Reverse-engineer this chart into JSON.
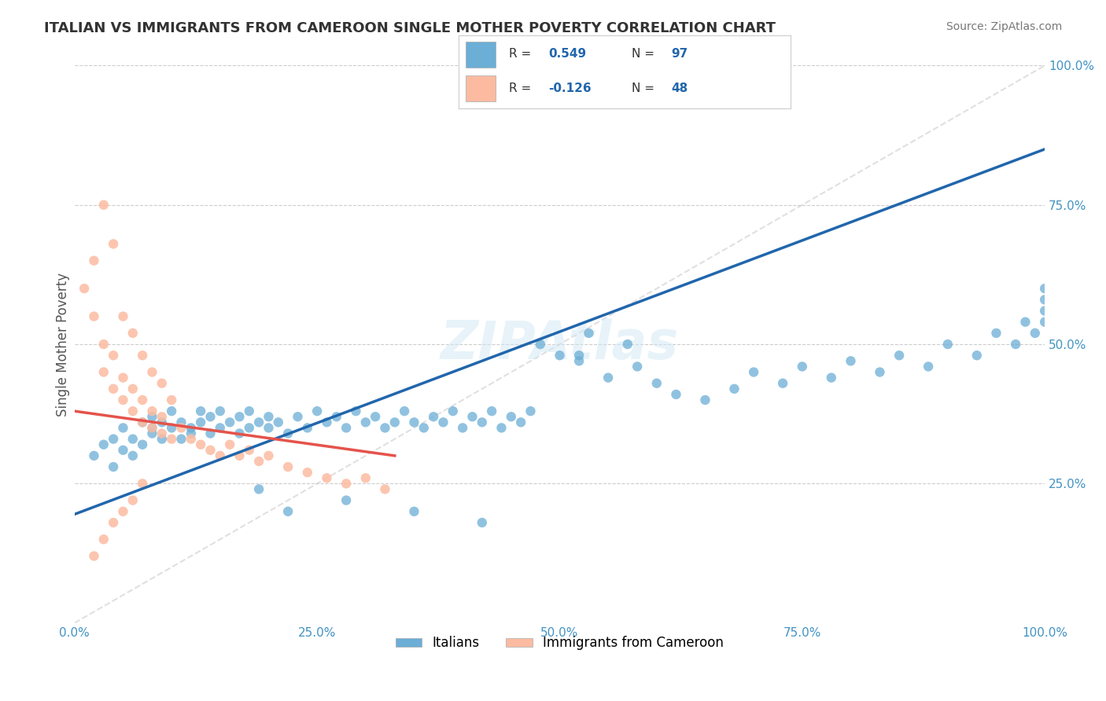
{
  "title": "ITALIAN VS IMMIGRANTS FROM CAMEROON SINGLE MOTHER POVERTY CORRELATION CHART",
  "source": "Source: ZipAtlas.com",
  "xlabel": "",
  "ylabel": "Single Mother Poverty",
  "xlim": [
    0,
    1
  ],
  "ylim": [
    0,
    1
  ],
  "xtick_labels": [
    "0.0%",
    "25.0%",
    "50.0%",
    "75.0%",
    "100.0%"
  ],
  "xtick_vals": [
    0,
    0.25,
    0.5,
    0.75,
    1.0
  ],
  "ytick_labels": [
    "25.0%",
    "50.0%",
    "75.0%",
    "100.0%"
  ],
  "ytick_vals": [
    0.25,
    0.5,
    0.75,
    1.0
  ],
  "blue_R": 0.549,
  "blue_N": 97,
  "pink_R": -0.126,
  "pink_N": 48,
  "blue_color": "#6baed6",
  "pink_color": "#fcbba1",
  "blue_trend_color": "#2166ac",
  "pink_trend_color": "#e5534b",
  "axis_color": "#4393c3",
  "watermark": "ZIPAtlas",
  "legend_label_blue": "Italians",
  "legend_label_pink": "Immigrants from Cameroon",
  "blue_scatter_x": [
    0.02,
    0.03,
    0.04,
    0.04,
    0.05,
    0.05,
    0.06,
    0.06,
    0.07,
    0.07,
    0.08,
    0.08,
    0.08,
    0.09,
    0.09,
    0.1,
    0.1,
    0.11,
    0.11,
    0.12,
    0.12,
    0.13,
    0.13,
    0.14,
    0.14,
    0.15,
    0.15,
    0.16,
    0.17,
    0.17,
    0.18,
    0.18,
    0.19,
    0.2,
    0.2,
    0.21,
    0.22,
    0.23,
    0.24,
    0.25,
    0.26,
    0.27,
    0.28,
    0.29,
    0.3,
    0.31,
    0.32,
    0.33,
    0.34,
    0.35,
    0.36,
    0.37,
    0.38,
    0.39,
    0.4,
    0.41,
    0.42,
    0.43,
    0.44,
    0.45,
    0.46,
    0.47,
    0.48,
    0.5,
    0.52,
    0.53,
    0.55,
    0.58,
    0.6,
    0.62,
    0.65,
    0.68,
    0.7,
    0.73,
    0.75,
    0.78,
    0.8,
    0.83,
    0.85,
    0.88,
    0.9,
    0.93,
    0.95,
    0.97,
    0.98,
    0.99,
    1.0,
    1.0,
    1.0,
    1.0,
    0.52,
    0.57,
    0.35,
    0.42,
    0.28,
    0.22,
    0.19
  ],
  "blue_scatter_y": [
    0.3,
    0.32,
    0.28,
    0.33,
    0.35,
    0.31,
    0.3,
    0.33,
    0.32,
    0.36,
    0.34,
    0.35,
    0.37,
    0.33,
    0.36,
    0.35,
    0.38,
    0.33,
    0.36,
    0.34,
    0.35,
    0.36,
    0.38,
    0.34,
    0.37,
    0.35,
    0.38,
    0.36,
    0.34,
    0.37,
    0.35,
    0.38,
    0.36,
    0.35,
    0.37,
    0.36,
    0.34,
    0.37,
    0.35,
    0.38,
    0.36,
    0.37,
    0.35,
    0.38,
    0.36,
    0.37,
    0.35,
    0.36,
    0.38,
    0.36,
    0.35,
    0.37,
    0.36,
    0.38,
    0.35,
    0.37,
    0.36,
    0.38,
    0.35,
    0.37,
    0.36,
    0.38,
    0.5,
    0.48,
    0.47,
    0.52,
    0.44,
    0.46,
    0.43,
    0.41,
    0.4,
    0.42,
    0.45,
    0.43,
    0.46,
    0.44,
    0.47,
    0.45,
    0.48,
    0.46,
    0.5,
    0.48,
    0.52,
    0.5,
    0.54,
    0.52,
    0.56,
    0.54,
    0.58,
    0.6,
    0.48,
    0.5,
    0.2,
    0.18,
    0.22,
    0.2,
    0.24
  ],
  "pink_scatter_x": [
    0.01,
    0.02,
    0.02,
    0.03,
    0.03,
    0.04,
    0.04,
    0.05,
    0.05,
    0.06,
    0.06,
    0.07,
    0.07,
    0.08,
    0.08,
    0.09,
    0.09,
    0.1,
    0.11,
    0.12,
    0.13,
    0.14,
    0.15,
    0.16,
    0.17,
    0.18,
    0.19,
    0.2,
    0.22,
    0.24,
    0.26,
    0.28,
    0.3,
    0.32,
    0.03,
    0.04,
    0.05,
    0.06,
    0.07,
    0.08,
    0.09,
    0.1,
    0.02,
    0.03,
    0.04,
    0.05,
    0.06,
    0.07
  ],
  "pink_scatter_y": [
    0.6,
    0.65,
    0.55,
    0.5,
    0.45,
    0.42,
    0.48,
    0.4,
    0.44,
    0.38,
    0.42,
    0.36,
    0.4,
    0.35,
    0.38,
    0.34,
    0.37,
    0.33,
    0.35,
    0.33,
    0.32,
    0.31,
    0.3,
    0.32,
    0.3,
    0.31,
    0.29,
    0.3,
    0.28,
    0.27,
    0.26,
    0.25,
    0.26,
    0.24,
    0.75,
    0.68,
    0.55,
    0.52,
    0.48,
    0.45,
    0.43,
    0.4,
    0.12,
    0.15,
    0.18,
    0.2,
    0.22,
    0.25
  ],
  "blue_trend_x0": 0.0,
  "blue_trend_y0": 0.195,
  "blue_trend_x1": 1.0,
  "blue_trend_y1": 0.85,
  "pink_trend_x0": 0.0,
  "pink_trend_y0": 0.38,
  "pink_trend_x1": 0.33,
  "pink_trend_y1": 0.3,
  "diag_line_color": "#cccccc"
}
